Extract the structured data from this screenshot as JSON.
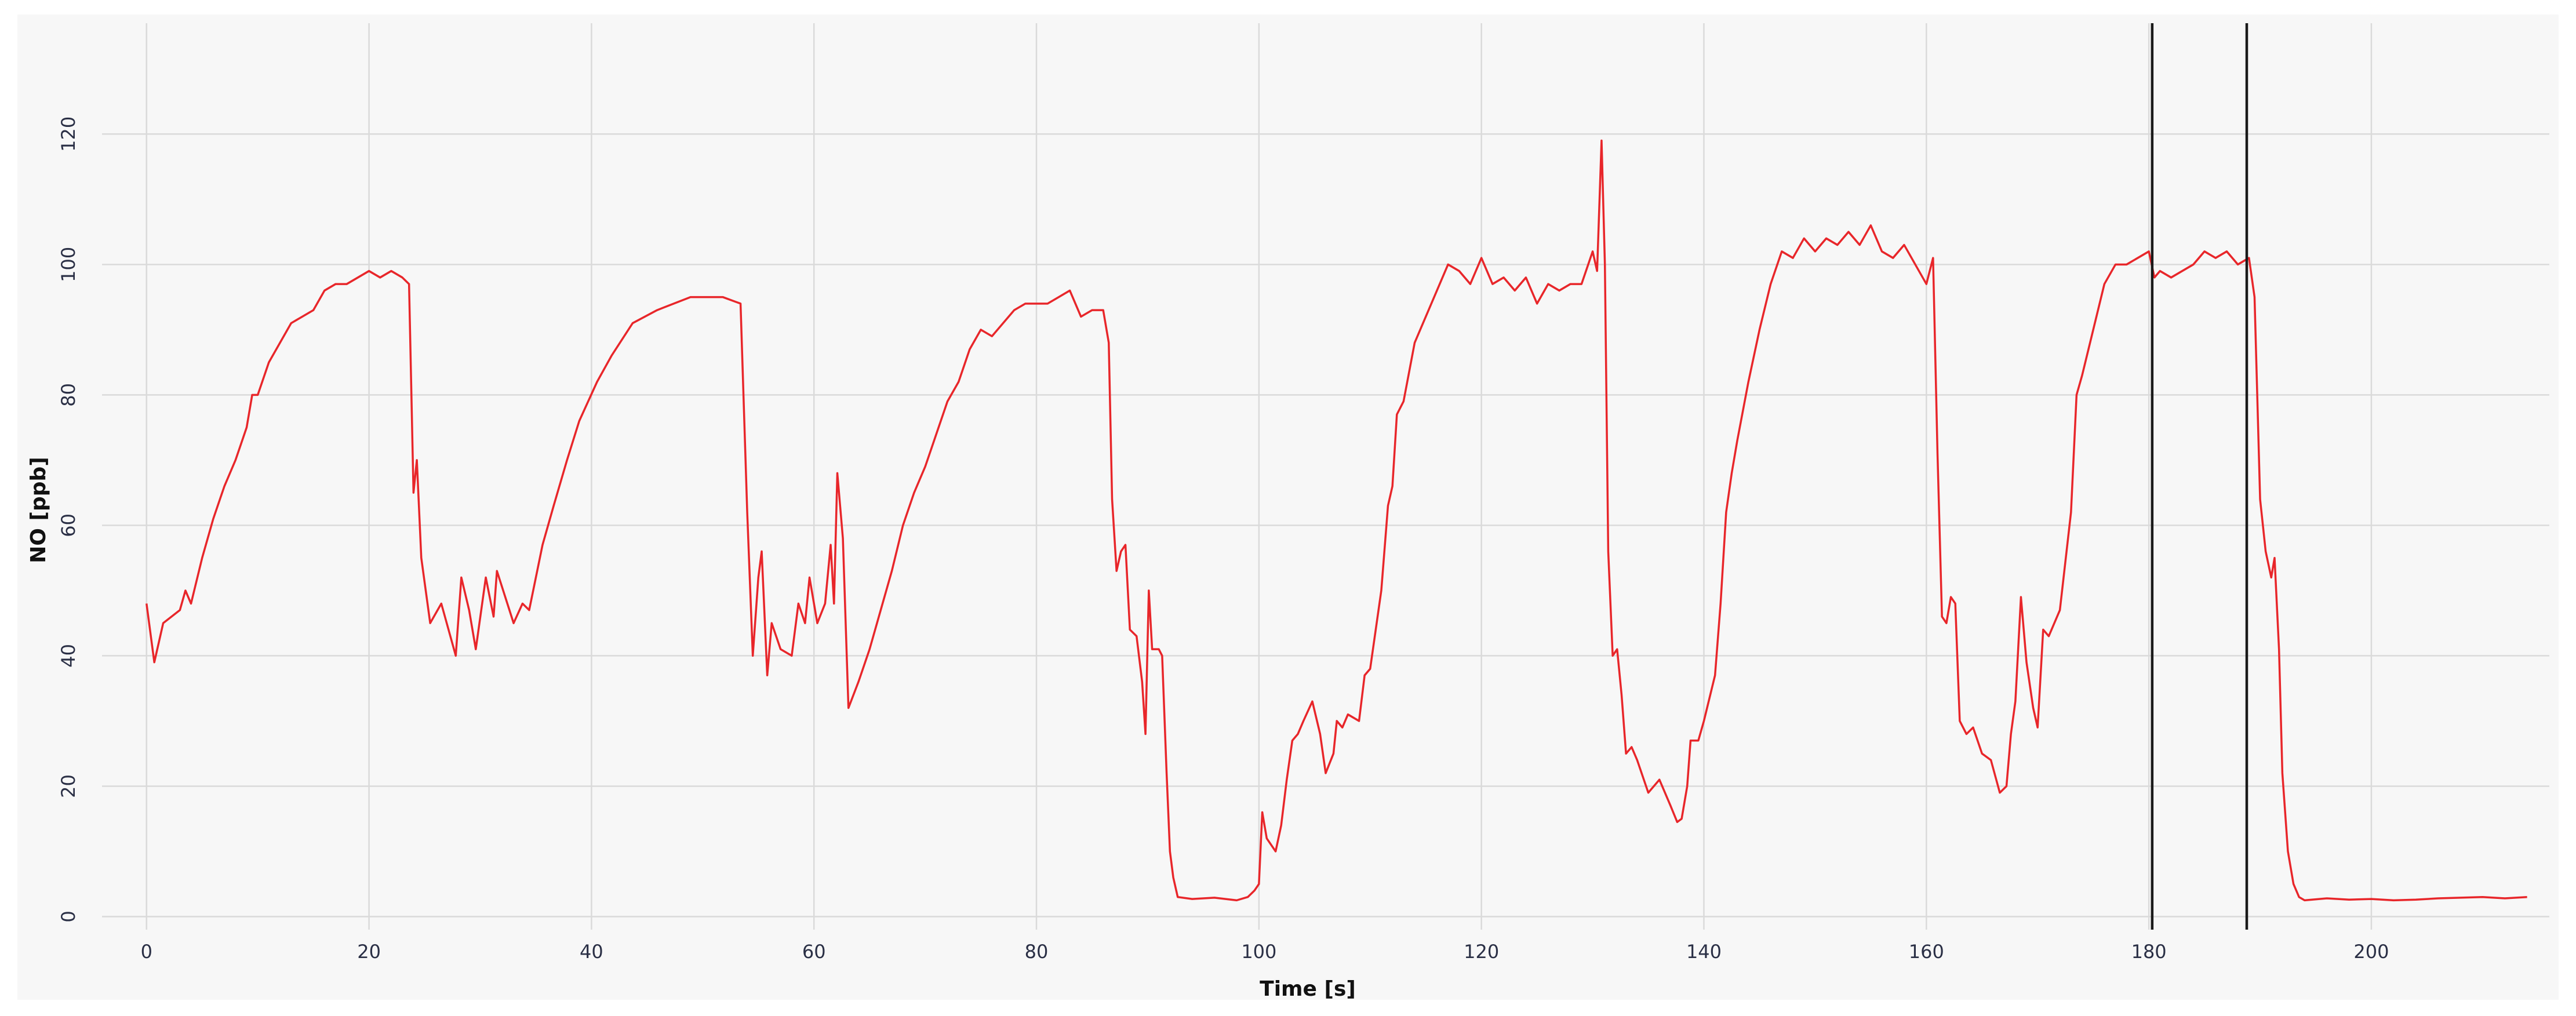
{
  "chart_data": {
    "type": "line",
    "xlabel": "Time [s]",
    "ylabel": "NO [ppb]",
    "xlim": [
      -4,
      216
    ],
    "ylim": [
      -2,
      137
    ],
    "xticks": [
      0,
      20,
      40,
      60,
      80,
      100,
      120,
      140,
      160,
      180,
      200
    ],
    "yticks": [
      0,
      20,
      40,
      60,
      80,
      100,
      120
    ],
    "grid": true,
    "cursors": [
      180.3,
      188.8
    ],
    "cursor_color": "#1a1a1a",
    "series": [
      {
        "color": "#e8262a",
        "x": [
          0,
          0.7,
          1.5,
          3,
          3.5,
          4,
          5,
          6,
          7,
          8,
          9,
          9.5,
          10,
          11,
          12,
          13,
          14,
          15,
          16,
          17,
          18,
          19,
          20,
          21,
          22,
          23,
          23.6,
          24,
          24.3,
          24.7,
          25.5,
          26.5,
          27.8,
          28.3,
          29,
          29.6,
          30.5,
          31.2,
          31.5,
          33,
          33.8,
          34.4,
          35.6,
          36.6,
          37.8,
          38.9,
          40.5,
          41.8,
          43.7,
          45.9,
          48.9,
          51.8,
          53.4,
          54,
          54.5,
          55,
          55.3,
          55.8,
          56.2,
          57,
          58,
          58.6,
          59.2,
          59.6,
          60.3,
          61,
          61.5,
          61.8,
          62.1,
          62.6,
          63.1,
          64,
          65,
          66,
          67,
          68,
          69,
          70,
          71,
          72,
          73,
          74,
          75,
          76,
          77,
          78,
          79,
          80,
          81,
          82,
          83,
          84,
          85,
          86,
          86.5,
          86.8,
          87.2,
          87.6,
          88,
          88.4,
          89,
          89.5,
          89.8,
          90.1,
          90.4,
          91,
          91.3,
          91.7,
          92,
          92.3,
          92.7,
          94,
          96,
          98,
          99,
          99.6,
          100,
          100.3,
          100.7,
          101.5,
          102,
          102.5,
          103,
          103.5,
          104,
          104.8,
          105.5,
          106,
          106.7,
          107,
          107.5,
          108,
          109,
          109.5,
          110,
          111,
          111.6,
          112,
          112.4,
          113,
          114,
          115,
          116,
          117,
          118,
          119,
          120,
          121,
          122,
          123,
          124,
          125,
          126,
          127,
          128,
          129,
          130,
          130.4,
          130.8,
          131.1,
          131.4,
          131.8,
          132.2,
          132.6,
          133,
          133.5,
          134,
          135,
          136,
          137,
          137.6,
          138,
          138.5,
          138.8,
          139.5,
          140,
          141,
          141.5,
          142,
          142.5,
          143,
          144,
          145,
          146,
          147,
          148,
          149,
          150,
          151,
          152,
          153,
          154,
          155,
          156,
          157,
          158,
          159,
          160,
          160.6,
          161,
          161.4,
          161.8,
          162.2,
          162.6,
          163,
          163.6,
          164.2,
          165,
          165.8,
          166.6,
          167.2,
          167.6,
          168,
          168.5,
          169,
          169.6,
          170,
          170.5,
          171,
          172,
          173,
          173.5,
          174,
          175,
          176,
          177,
          178,
          179,
          180,
          180.5,
          181,
          182,
          183,
          184,
          185,
          186,
          187,
          188,
          189,
          189.5,
          190,
          190.5,
          191,
          191.3,
          191.7,
          192,
          192.5,
          193,
          193.5,
          194,
          196,
          198,
          200,
          202,
          204,
          206,
          208,
          210,
          212,
          214
        ],
        "values": [
          48,
          39,
          45,
          47,
          50,
          48,
          55,
          61,
          66,
          70,
          75,
          80,
          80,
          85,
          88,
          91,
          92,
          93,
          96,
          97,
          97,
          98,
          99,
          98,
          99,
          98,
          97,
          65,
          70,
          55,
          45,
          48,
          40,
          52,
          47,
          41,
          52,
          46,
          53,
          45,
          48,
          47,
          57,
          63,
          70,
          76,
          82,
          86,
          91,
          93,
          95,
          95,
          94,
          62,
          40,
          52,
          56,
          37,
          45,
          41,
          40,
          48,
          45,
          52,
          45,
          48,
          57,
          48,
          68,
          58,
          32,
          36,
          41,
          47,
          53,
          60,
          65,
          69,
          74,
          79,
          82,
          87,
          90,
          89,
          91,
          93,
          94,
          94,
          94,
          95,
          96,
          92,
          93,
          93,
          88,
          64,
          53,
          56,
          57,
          44,
          43,
          36,
          28,
          50,
          41,
          41,
          40,
          22,
          10,
          6,
          3,
          2.7,
          2.9,
          2.5,
          3,
          4,
          5,
          16,
          12,
          10,
          14,
          21,
          27,
          28,
          30,
          33,
          28,
          22,
          25,
          30,
          29,
          31,
          30,
          37,
          38,
          50,
          63,
          66,
          77,
          79,
          88,
          92,
          96,
          100,
          99,
          97,
          101,
          97,
          98,
          96,
          98,
          94,
          97,
          96,
          97,
          97,
          102,
          99,
          119,
          100,
          56,
          40,
          41,
          34,
          25,
          26,
          24,
          19,
          21,
          17,
          14.5,
          15,
          20,
          27,
          27,
          30,
          37,
          48,
          62,
          68,
          73,
          82,
          90,
          97,
          102,
          101,
          104,
          102,
          104,
          103,
          105,
          103,
          106,
          102,
          101,
          103,
          100,
          97,
          101,
          71,
          46,
          45,
          49,
          48,
          30,
          28,
          29,
          25,
          24,
          19,
          20,
          28,
          33,
          49,
          39,
          32,
          29,
          44,
          43,
          47,
          62,
          80,
          83,
          90,
          97,
          100,
          100,
          101,
          102,
          98,
          99,
          98,
          99,
          100,
          102,
          101,
          102,
          100,
          101,
          95,
          64,
          56,
          52,
          55,
          41,
          22,
          10,
          5,
          3,
          2.5,
          2.8,
          2.6,
          2.7,
          2.5,
          2.6,
          2.8,
          2.9,
          3,
          2.8,
          3
        ]
      }
    ]
  }
}
